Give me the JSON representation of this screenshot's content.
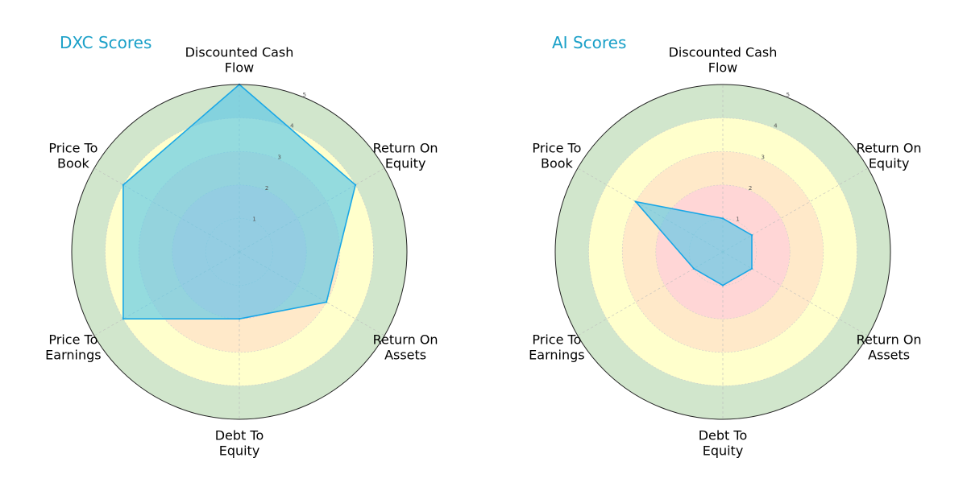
{
  "chart_data": [
    {
      "type": "radar",
      "title": "DXC Scores",
      "axes": [
        "Discounted Cash\nFlow",
        "Return On\nEquity",
        "Return On\nAssets",
        "Debt To\nEquity",
        "Price To\nEarnings",
        "Price To\nBook"
      ],
      "rlim": [
        0,
        5
      ],
      "rticks": [
        "1",
        "2",
        "3",
        "4",
        "5"
      ],
      "values": [
        5,
        4,
        3,
        2,
        4,
        4
      ],
      "color": "#1aa7e6",
      "fill": "#5bc8e8",
      "title_color": "#1aa0c8",
      "grid": true
    },
    {
      "type": "radar",
      "title": "AI Scores",
      "axes": [
        "Discounted Cash\nFlow",
        "Return On\nEquity",
        "Return On\nAssets",
        "Debt To\nEquity",
        "Price To\nEarnings",
        "Price To\nBook"
      ],
      "rlim": [
        0,
        5
      ],
      "rticks": [
        "1",
        "2",
        "3",
        "4",
        "5"
      ],
      "values": [
        1,
        1,
        1,
        1,
        1,
        3
      ],
      "color": "#1aa7e6",
      "fill": "#5bc8e8",
      "title_color": "#1aa0c8",
      "grid": true
    }
  ],
  "bands": [
    {
      "from": 0,
      "to": 2,
      "color": "#ffd6d6"
    },
    {
      "from": 2,
      "to": 3,
      "color": "#ffe9c9"
    },
    {
      "from": 3,
      "to": 4,
      "color": "#ffffcc"
    },
    {
      "from": 4,
      "to": 5,
      "color": "#d1e6cc"
    }
  ]
}
